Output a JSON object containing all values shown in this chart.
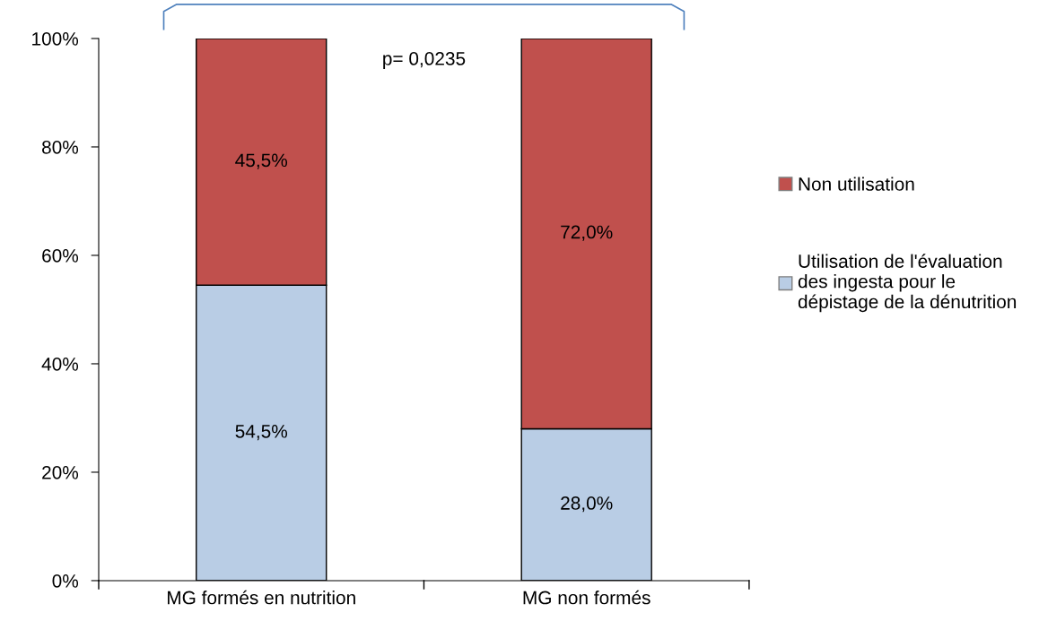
{
  "chart_data": {
    "type": "bar",
    "stacked": true,
    "categories": [
      "MG formés en nutrition",
      "MG non formés"
    ],
    "series": [
      {
        "name": "Utilisation de l'évaluation\ndes ingesta pour le\ndépistage de la dénutrition",
        "color": "#b9cde5",
        "values": [
          54.5,
          28.0
        ],
        "value_labels": [
          "54,5%",
          "28,0%"
        ]
      },
      {
        "name": "Non utilisation",
        "color": "#c0504d",
        "values": [
          45.5,
          72.0
        ],
        "value_labels": [
          "45,5%",
          "72,0%"
        ]
      }
    ],
    "ylim": [
      0,
      100
    ],
    "yticks": [
      {
        "value": 0,
        "label": "0%"
      },
      {
        "value": 20,
        "label": "20%"
      },
      {
        "value": 40,
        "label": "40%"
      },
      {
        "value": 60,
        "label": "60%"
      },
      {
        "value": 80,
        "label": "80%"
      },
      {
        "value": 100,
        "label": "100%"
      }
    ],
    "annotations": [
      "p= 0,0235"
    ],
    "legend": "right",
    "grid": false
  }
}
